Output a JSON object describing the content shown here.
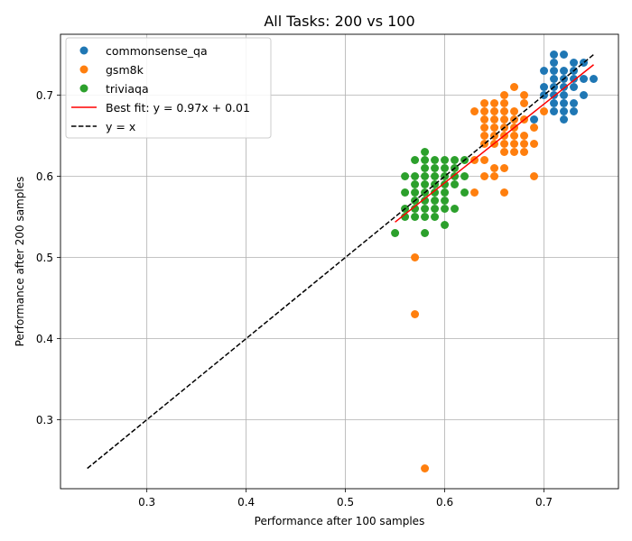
{
  "chart_data": {
    "type": "scatter",
    "title": "All Tasks: 200 vs 100",
    "xlabel": "Performance after 100 samples",
    "ylabel": "Performance after 200 samples",
    "xlim": [
      0.213,
      0.775
    ],
    "ylim": [
      0.215,
      0.775
    ],
    "xticks": [
      0.3,
      0.4,
      0.5,
      0.6,
      0.7
    ],
    "yticks": [
      0.3,
      0.4,
      0.5,
      0.6,
      0.7
    ],
    "xtick_labels": [
      "0.3",
      "0.4",
      "0.5",
      "0.6",
      "0.7"
    ],
    "ytick_labels": [
      "0.3",
      "0.4",
      "0.5",
      "0.6",
      "0.7"
    ],
    "grid": true,
    "legend_position": "top-left",
    "series": [
      {
        "name": "commonsense_qa",
        "color": "#1f77b4",
        "points": [
          [
            0.71,
            0.75
          ],
          [
            0.72,
            0.75
          ],
          [
            0.71,
            0.74
          ],
          [
            0.73,
            0.74
          ],
          [
            0.74,
            0.74
          ],
          [
            0.7,
            0.73
          ],
          [
            0.71,
            0.73
          ],
          [
            0.72,
            0.73
          ],
          [
            0.73,
            0.73
          ],
          [
            0.71,
            0.72
          ],
          [
            0.72,
            0.72
          ],
          [
            0.73,
            0.72
          ],
          [
            0.74,
            0.72
          ],
          [
            0.75,
            0.72
          ],
          [
            0.7,
            0.71
          ],
          [
            0.71,
            0.71
          ],
          [
            0.72,
            0.71
          ],
          [
            0.73,
            0.71
          ],
          [
            0.7,
            0.7
          ],
          [
            0.71,
            0.7
          ],
          [
            0.72,
            0.7
          ],
          [
            0.74,
            0.7
          ],
          [
            0.71,
            0.69
          ],
          [
            0.72,
            0.69
          ],
          [
            0.73,
            0.69
          ],
          [
            0.71,
            0.68
          ],
          [
            0.72,
            0.68
          ],
          [
            0.73,
            0.68
          ],
          [
            0.69,
            0.67
          ],
          [
            0.72,
            0.67
          ]
        ]
      },
      {
        "name": "gsm8k",
        "color": "#ff7f0e",
        "points": [
          [
            0.67,
            0.71
          ],
          [
            0.66,
            0.7
          ],
          [
            0.68,
            0.7
          ],
          [
            0.64,
            0.69
          ],
          [
            0.65,
            0.69
          ],
          [
            0.66,
            0.69
          ],
          [
            0.68,
            0.69
          ],
          [
            0.63,
            0.68
          ],
          [
            0.64,
            0.68
          ],
          [
            0.65,
            0.68
          ],
          [
            0.66,
            0.68
          ],
          [
            0.67,
            0.68
          ],
          [
            0.7,
            0.68
          ],
          [
            0.64,
            0.67
          ],
          [
            0.65,
            0.67
          ],
          [
            0.66,
            0.67
          ],
          [
            0.67,
            0.67
          ],
          [
            0.68,
            0.67
          ],
          [
            0.64,
            0.66
          ],
          [
            0.65,
            0.66
          ],
          [
            0.66,
            0.66
          ],
          [
            0.67,
            0.66
          ],
          [
            0.69,
            0.66
          ],
          [
            0.64,
            0.65
          ],
          [
            0.65,
            0.65
          ],
          [
            0.66,
            0.65
          ],
          [
            0.67,
            0.65
          ],
          [
            0.68,
            0.65
          ],
          [
            0.64,
            0.64
          ],
          [
            0.65,
            0.64
          ],
          [
            0.66,
            0.64
          ],
          [
            0.67,
            0.64
          ],
          [
            0.68,
            0.64
          ],
          [
            0.69,
            0.64
          ],
          [
            0.66,
            0.63
          ],
          [
            0.67,
            0.63
          ],
          [
            0.68,
            0.63
          ],
          [
            0.63,
            0.62
          ],
          [
            0.64,
            0.62
          ],
          [
            0.65,
            0.61
          ],
          [
            0.66,
            0.61
          ],
          [
            0.64,
            0.6
          ],
          [
            0.65,
            0.6
          ],
          [
            0.69,
            0.6
          ],
          [
            0.63,
            0.58
          ],
          [
            0.66,
            0.58
          ],
          [
            0.57,
            0.5
          ],
          [
            0.57,
            0.43
          ],
          [
            0.58,
            0.24
          ]
        ]
      },
      {
        "name": "triviaqa",
        "color": "#2ca02c",
        "points": [
          [
            0.58,
            0.63
          ],
          [
            0.57,
            0.62
          ],
          [
            0.58,
            0.62
          ],
          [
            0.59,
            0.62
          ],
          [
            0.6,
            0.62
          ],
          [
            0.61,
            0.62
          ],
          [
            0.62,
            0.62
          ],
          [
            0.58,
            0.61
          ],
          [
            0.59,
            0.61
          ],
          [
            0.6,
            0.61
          ],
          [
            0.61,
            0.61
          ],
          [
            0.56,
            0.6
          ],
          [
            0.57,
            0.6
          ],
          [
            0.58,
            0.6
          ],
          [
            0.59,
            0.6
          ],
          [
            0.6,
            0.6
          ],
          [
            0.61,
            0.6
          ],
          [
            0.62,
            0.6
          ],
          [
            0.57,
            0.59
          ],
          [
            0.58,
            0.59
          ],
          [
            0.59,
            0.59
          ],
          [
            0.6,
            0.59
          ],
          [
            0.61,
            0.59
          ],
          [
            0.56,
            0.58
          ],
          [
            0.57,
            0.58
          ],
          [
            0.58,
            0.58
          ],
          [
            0.59,
            0.58
          ],
          [
            0.6,
            0.58
          ],
          [
            0.62,
            0.58
          ],
          [
            0.57,
            0.57
          ],
          [
            0.58,
            0.57
          ],
          [
            0.59,
            0.57
          ],
          [
            0.6,
            0.57
          ],
          [
            0.56,
            0.56
          ],
          [
            0.57,
            0.56
          ],
          [
            0.58,
            0.56
          ],
          [
            0.59,
            0.56
          ],
          [
            0.6,
            0.56
          ],
          [
            0.61,
            0.56
          ],
          [
            0.56,
            0.55
          ],
          [
            0.57,
            0.55
          ],
          [
            0.58,
            0.55
          ],
          [
            0.59,
            0.55
          ],
          [
            0.6,
            0.54
          ],
          [
            0.55,
            0.53
          ],
          [
            0.58,
            0.53
          ]
        ]
      }
    ],
    "lines": [
      {
        "name": "Best fit: y = 0.97x + 0.01",
        "color": "#ff0000",
        "dash": "solid",
        "x": [
          0.55,
          0.75
        ],
        "y": [
          0.5435,
          0.7375
        ]
      },
      {
        "name": "y = x",
        "color": "#000000",
        "dash": "dashed",
        "x": [
          0.24,
          0.75
        ],
        "y": [
          0.24,
          0.75
        ]
      }
    ]
  }
}
